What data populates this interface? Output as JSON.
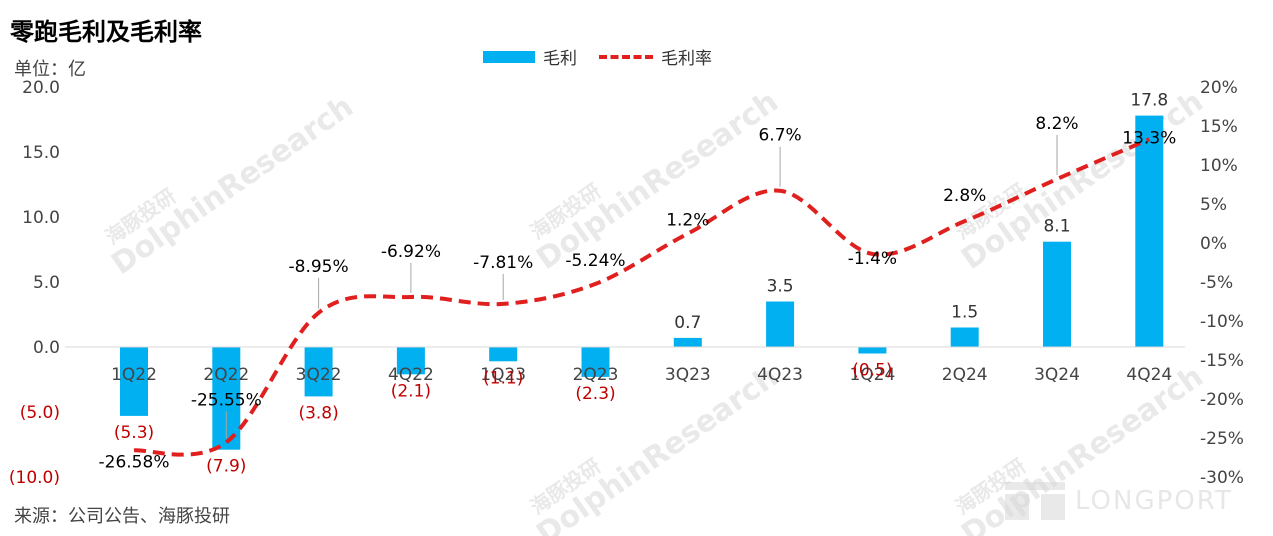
{
  "header": {
    "title": "零跑毛利及毛利率",
    "unit": "单位：亿"
  },
  "footer": {
    "source": "来源：公司公告、海豚投研"
  },
  "watermark": {
    "cn": "海豚投研",
    "en": "DolphinResearch"
  },
  "logo": {
    "text": "LONGPORT"
  },
  "colors": {
    "bar": "#00B0F0",
    "line": "#E0201E",
    "negative_label": "#C00000"
  },
  "chart_data": {
    "type": "bar",
    "categories": [
      "1Q22",
      "2Q22",
      "3Q22",
      "4Q22",
      "1Q23",
      "2Q23",
      "3Q23",
      "4Q23",
      "1Q24",
      "2Q24",
      "3Q24",
      "4Q24"
    ],
    "series": [
      {
        "name": "毛利",
        "type": "bar",
        "axis": "left",
        "values": [
          -5.3,
          -7.9,
          -3.8,
          -2.1,
          -1.1,
          -2.3,
          0.7,
          3.5,
          -0.5,
          1.5,
          8.1,
          17.8
        ],
        "labels": [
          "(5.3)",
          "(7.9)",
          "(3.8)",
          "(2.1)",
          "(1.1)",
          "(2.3)",
          "0.7",
          "3.5",
          "(0.5)",
          "1.5",
          "8.1",
          "17.8"
        ]
      },
      {
        "name": "毛利率",
        "type": "line",
        "axis": "right",
        "style": "dashed-smooth",
        "values": [
          -26.58,
          -25.55,
          -8.95,
          -6.92,
          -7.81,
          -5.24,
          1.2,
          6.7,
          -1.4,
          2.8,
          8.2,
          13.3
        ],
        "labels": [
          "-26.58%",
          "-25.55%",
          "-8.95%",
          "-6.92%",
          "-7.81%",
          "-5.24%",
          "1.2%",
          "6.7%",
          "-1.4%",
          "2.8%",
          "8.2%",
          "13.3%"
        ]
      }
    ],
    "left_axis": {
      "ylim": [
        -10,
        20
      ],
      "ticks": [
        "(10.0)",
        "(5.0)",
        "0.0",
        "5.0",
        "10.0",
        "15.0",
        "20.0"
      ]
    },
    "right_axis": {
      "ylim": [
        -30,
        20
      ],
      "ticks": [
        "-30%",
        "-25%",
        "-20%",
        "-15%",
        "-10%",
        "-5%",
        "0%",
        "5%",
        "10%",
        "15%",
        "20%"
      ]
    },
    "legend_position": "top-center",
    "grid": false
  }
}
